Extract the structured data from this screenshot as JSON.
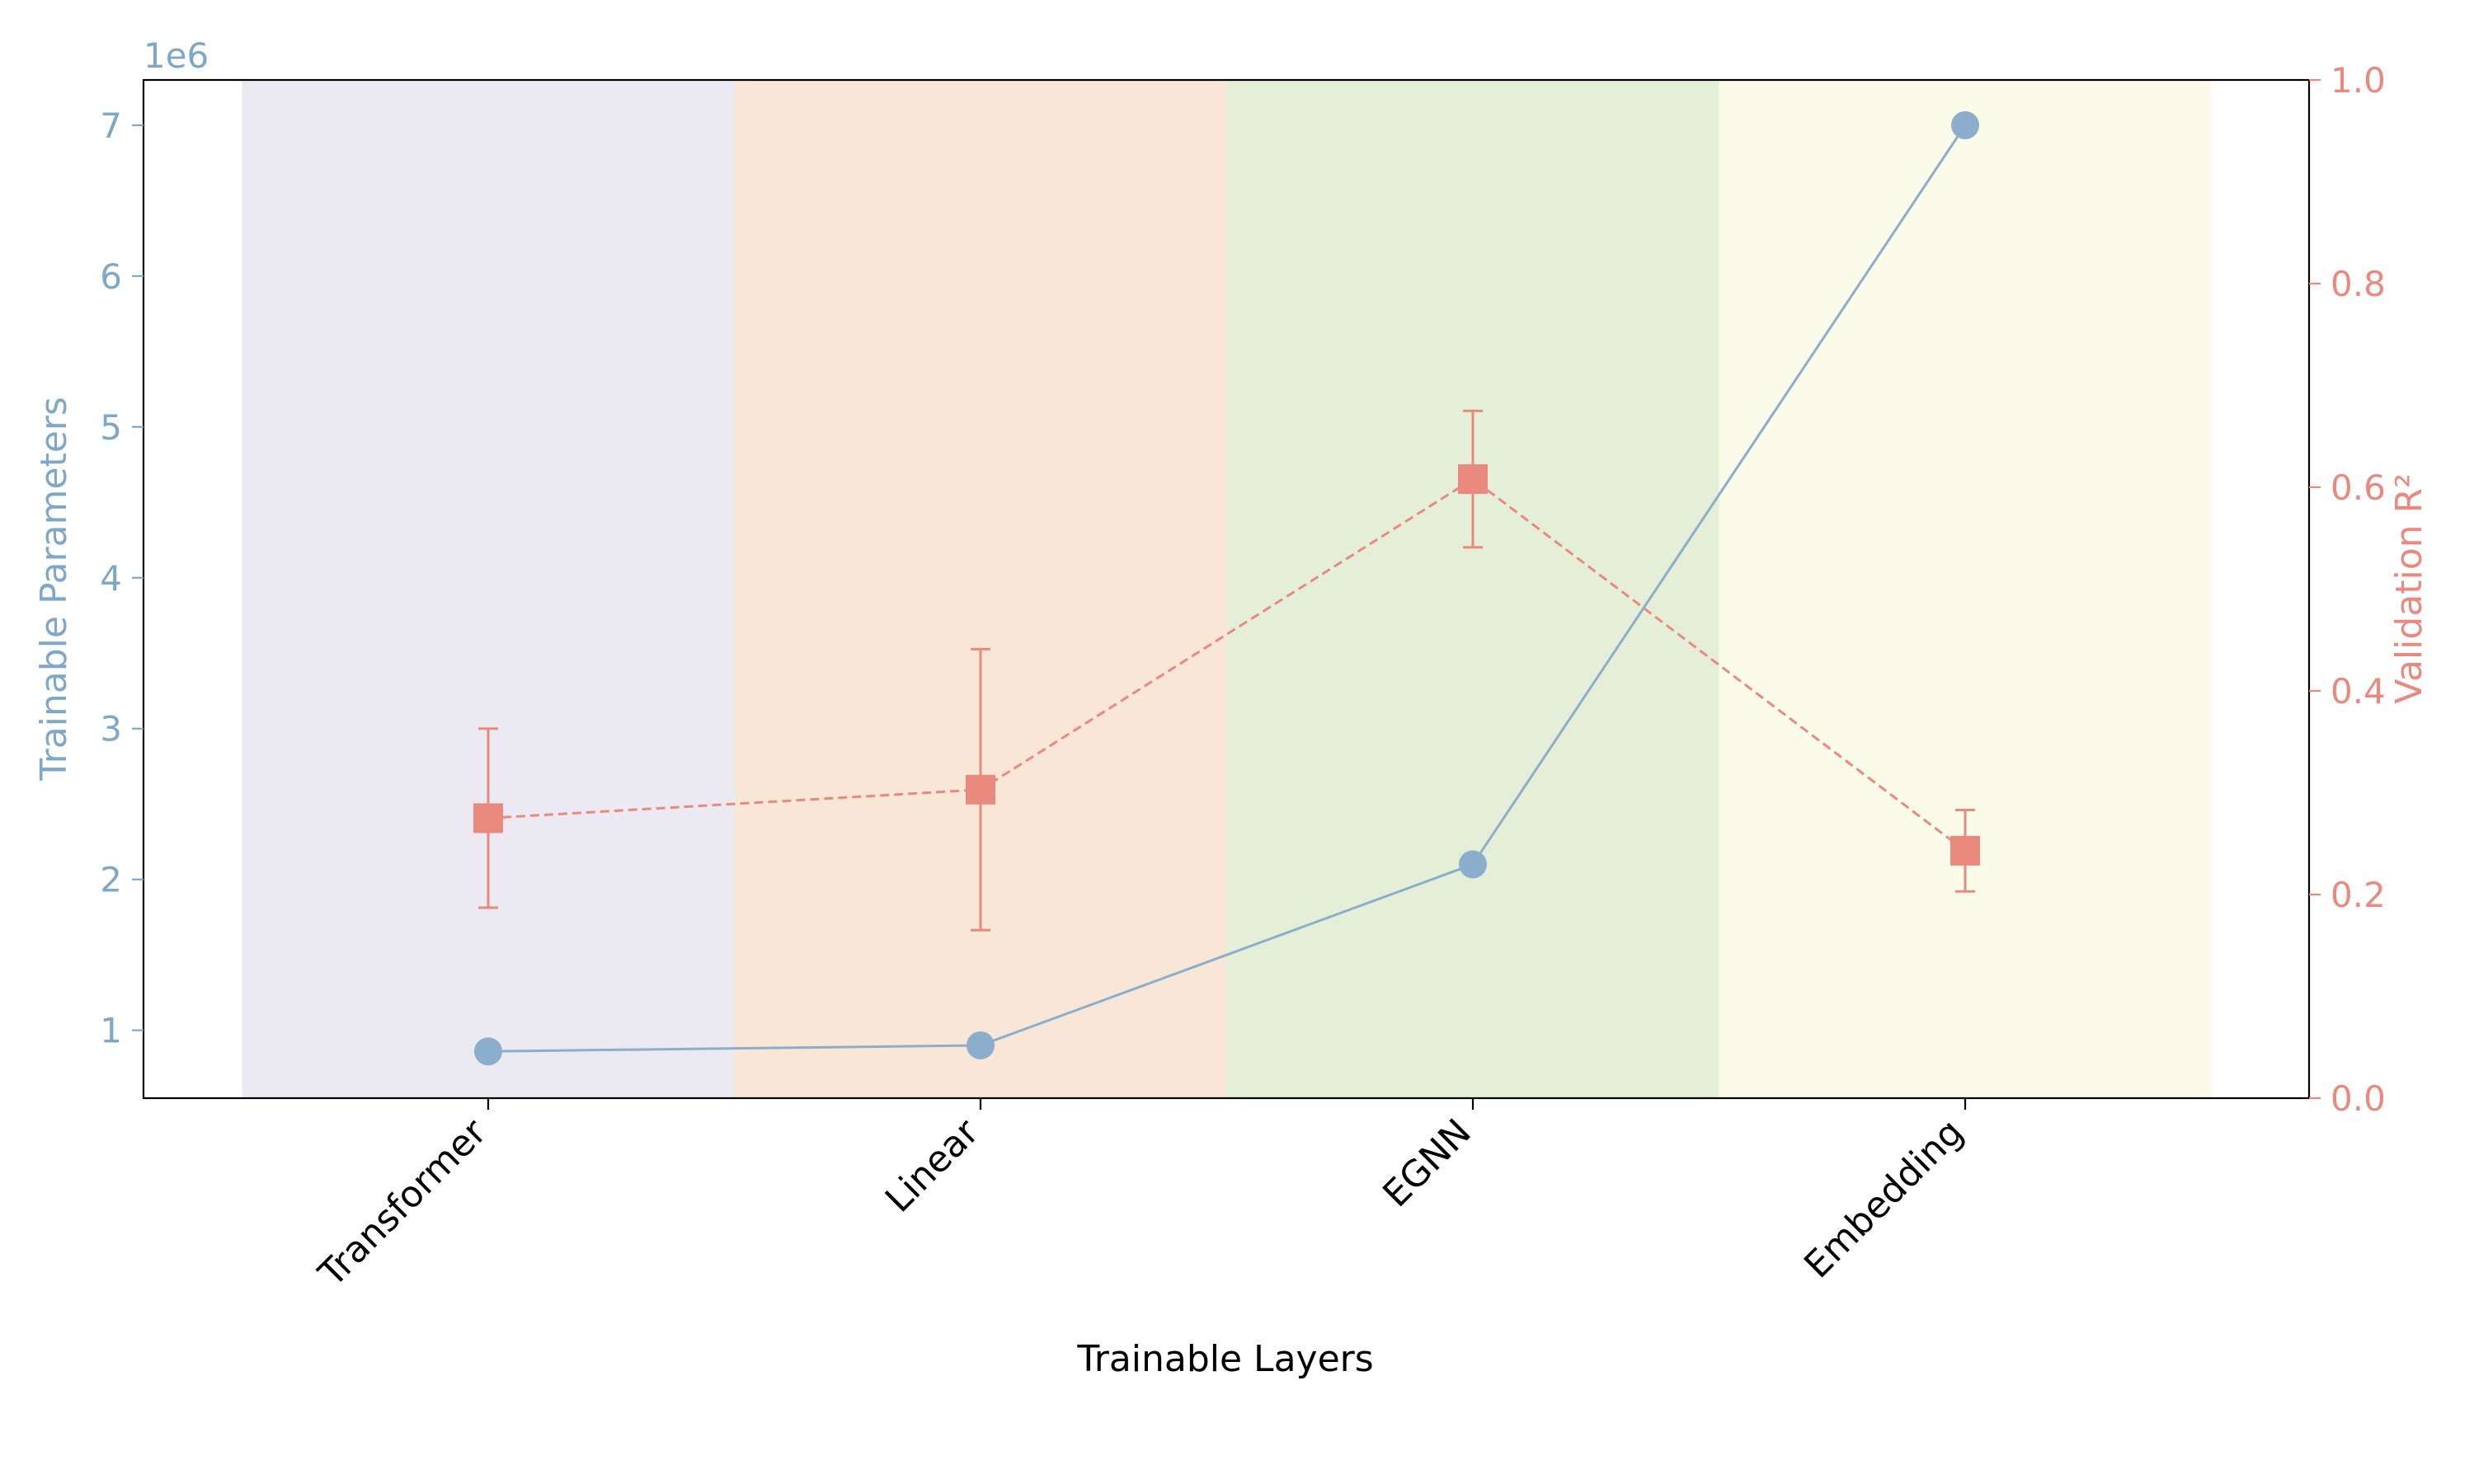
{
  "chart_data": {
    "type": "line",
    "categories": [
      "Transformer",
      "Linear",
      "EGNN",
      "Embedding"
    ],
    "xlabel": "Trainable Layers",
    "category_backgrounds": [
      "#ebe9f1",
      "#f8e6d6",
      "#e5efd7",
      "#fafbe9"
    ],
    "left_axis": {
      "label": "Trainable Parameters",
      "offset_text": "1e6",
      "color": "#7fa8c8",
      "ylim": [
        0.55,
        7.3
      ],
      "ticks": [
        1,
        2,
        3,
        4,
        5,
        6,
        7
      ]
    },
    "right_axis": {
      "label": "Validation R²",
      "color": "#ea8a7e",
      "ylim": [
        0.0,
        1.0
      ],
      "ticks": [
        "0.0",
        "0.2",
        "0.4",
        "0.6",
        "0.8",
        "1.0"
      ]
    },
    "series": [
      {
        "axis": "left",
        "values": [
          0.86,
          0.9,
          2.1,
          7.0
        ],
        "unit_multiplier": 1000000,
        "color": "#8aaecb",
        "marker": "circle",
        "line": "solid"
      },
      {
        "axis": "right",
        "values": [
          0.275,
          0.303,
          0.608,
          0.243
        ],
        "errors": [
          0.088,
          0.138,
          0.067,
          0.04
        ],
        "color": "#ea8a7e",
        "marker": "square",
        "line": "dashed"
      }
    ]
  }
}
